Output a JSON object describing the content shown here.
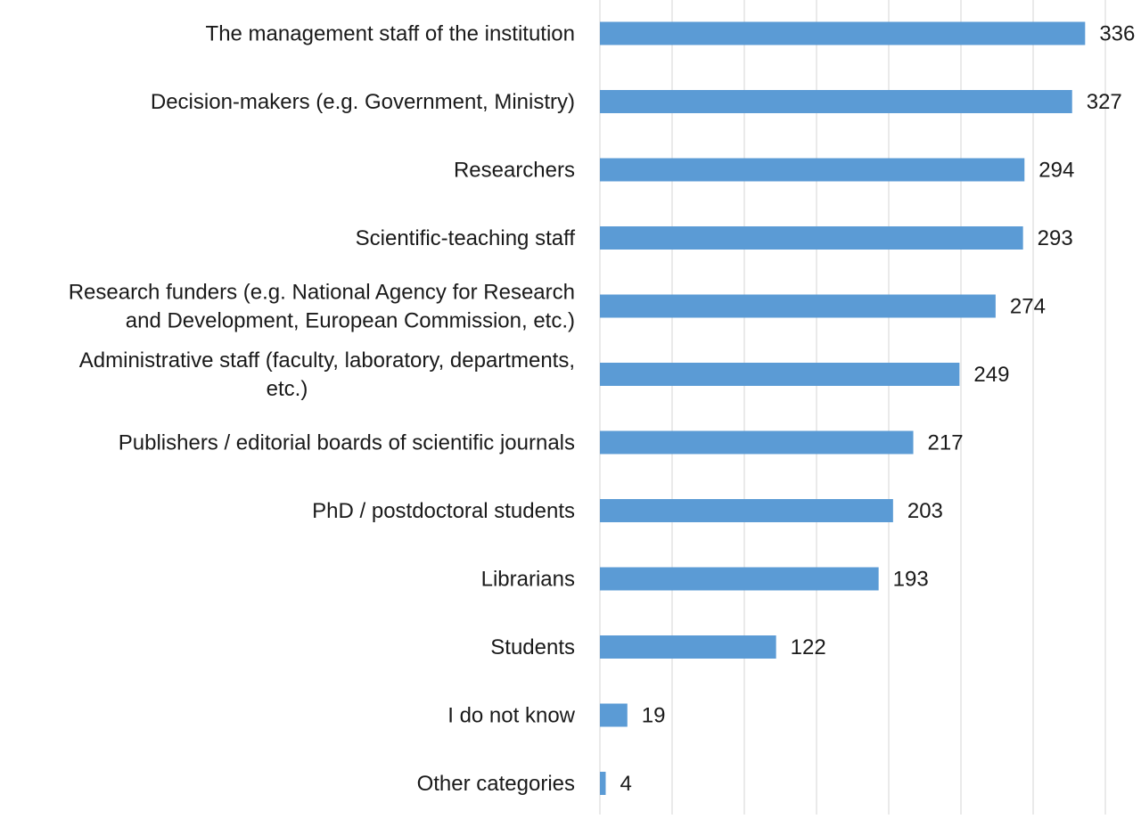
{
  "chart_data": {
    "type": "bar",
    "orientation": "horizontal",
    "categories": [
      [
        "The management staff of the institution"
      ],
      [
        "Decision-makers (e.g. Government, Ministry)"
      ],
      [
        "Researchers"
      ],
      [
        "Scientific-teaching staff"
      ],
      [
        "Research funders (e.g. National Agency for Research",
        "and Development, European Commission, etc.)"
      ],
      [
        "Administrative staff (faculty, laboratory, departments,",
        "etc.)"
      ],
      [
        "Publishers / editorial boards of scientific journals"
      ],
      [
        "PhD / postdoctoral students"
      ],
      [
        "Librarians"
      ],
      [
        "Students"
      ],
      [
        "I do not know"
      ],
      [
        "Other categories"
      ]
    ],
    "values": [
      336,
      327,
      294,
      293,
      274,
      249,
      217,
      203,
      193,
      122,
      19,
      4
    ],
    "data_labels": [
      "336",
      "327",
      "294",
      "293",
      "274",
      "249",
      "217",
      "203",
      "193",
      "122",
      "19",
      "4"
    ],
    "title": "",
    "xlabel": "",
    "ylabel": "",
    "xlim": [
      0,
      350
    ],
    "grid_step": 50,
    "grid": true,
    "legend": "none",
    "colors": {
      "bar": "#5b9bd5",
      "grid": "#d4d4d4",
      "text": "#1a1a1a"
    }
  }
}
